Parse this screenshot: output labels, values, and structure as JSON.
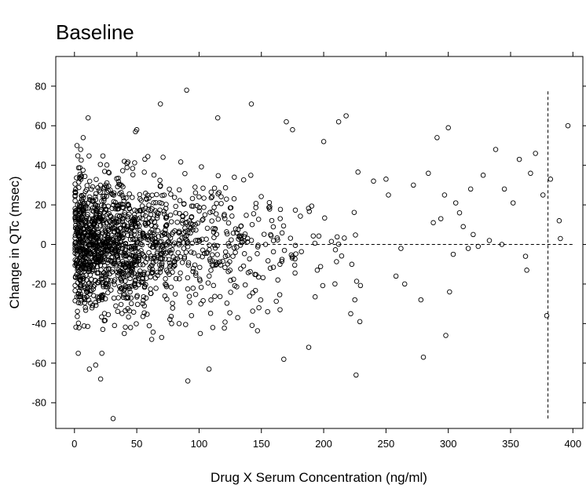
{
  "chart_data": {
    "type": "scatter",
    "title": "Baseline",
    "xlabel": "Drug X Serum Concentration (ng/ml)",
    "ylabel": "Change in QTc (msec)",
    "xlim": [
      -15,
      408
    ],
    "ylim": [
      -93,
      95
    ],
    "x_ticks": [
      0,
      50,
      100,
      150,
      200,
      250,
      300,
      350,
      400
    ],
    "y_ticks": [
      -80,
      -60,
      -40,
      -20,
      0,
      20,
      40,
      60,
      80
    ],
    "grid": false,
    "legend": "none",
    "marker": "open-circle",
    "reference_lines": [
      {
        "orientation": "horizontal",
        "y": 0,
        "x_from": 0,
        "x_to": 400,
        "style": "dashed"
      },
      {
        "orientation": "vertical",
        "x": 380,
        "y_from": -88,
        "y_to": 78,
        "style": "dashed"
      }
    ],
    "series": [
      {
        "points": [
          [
            2,
            50
          ],
          [
            3,
            -55
          ],
          [
            5,
            48
          ],
          [
            7,
            54
          ],
          [
            11,
            64
          ],
          [
            12,
            -63
          ],
          [
            17,
            -61
          ],
          [
            21,
            -68
          ],
          [
            22,
            -55
          ],
          [
            31,
            -88
          ],
          [
            40,
            -45
          ],
          [
            45,
            -42
          ],
          [
            49,
            57
          ],
          [
            50,
            58
          ],
          [
            62,
            -48
          ],
          [
            69,
            71
          ],
          [
            70,
            -47
          ],
          [
            78,
            -40
          ],
          [
            84,
            -40
          ],
          [
            90,
            78
          ],
          [
            91,
            -69
          ],
          [
            101,
            -45
          ],
          [
            108,
            -63
          ],
          [
            111,
            -42
          ],
          [
            115,
            64
          ],
          [
            131,
            -37
          ],
          [
            142,
            71
          ],
          [
            148,
            -32
          ],
          [
            155,
            -34
          ],
          [
            165,
            -33
          ],
          [
            168,
            -58
          ],
          [
            170,
            62
          ],
          [
            175,
            58
          ],
          [
            188,
            -52
          ],
          [
            200,
            52
          ],
          [
            212,
            62
          ],
          [
            218,
            65
          ],
          [
            225,
            -28
          ],
          [
            226,
            -66
          ],
          [
            229,
            -39
          ],
          [
            240,
            32
          ],
          [
            250,
            33
          ],
          [
            252,
            25
          ],
          [
            258,
            -16
          ],
          [
            262,
            -2
          ],
          [
            265,
            -20
          ],
          [
            272,
            30
          ],
          [
            278,
            -28
          ],
          [
            280,
            -57
          ],
          [
            284,
            36
          ],
          [
            288,
            11
          ],
          [
            291,
            54
          ],
          [
            294,
            13
          ],
          [
            297,
            25
          ],
          [
            298,
            -46
          ],
          [
            300,
            59
          ],
          [
            301,
            -24
          ],
          [
            304,
            -5
          ],
          [
            306,
            21
          ],
          [
            309,
            16
          ],
          [
            312,
            9
          ],
          [
            316,
            -2
          ],
          [
            318,
            28
          ],
          [
            320,
            5
          ],
          [
            324,
            -1
          ],
          [
            328,
            35
          ],
          [
            333,
            2
          ],
          [
            338,
            48
          ],
          [
            343,
            0
          ],
          [
            345,
            28
          ],
          [
            352,
            21
          ],
          [
            357,
            43
          ],
          [
            362,
            -6
          ],
          [
            363,
            -13
          ],
          [
            366,
            36
          ],
          [
            370,
            46
          ],
          [
            376,
            25
          ],
          [
            379,
            -36
          ],
          [
            382,
            33
          ],
          [
            389,
            12
          ],
          [
            390,
            3
          ],
          [
            396,
            60
          ]
        ],
        "generated_cluster": {
          "note_count": 1550,
          "x_range": [
            0,
            250
          ],
          "y_range": [
            -45,
            45
          ]
        }
      }
    ]
  }
}
